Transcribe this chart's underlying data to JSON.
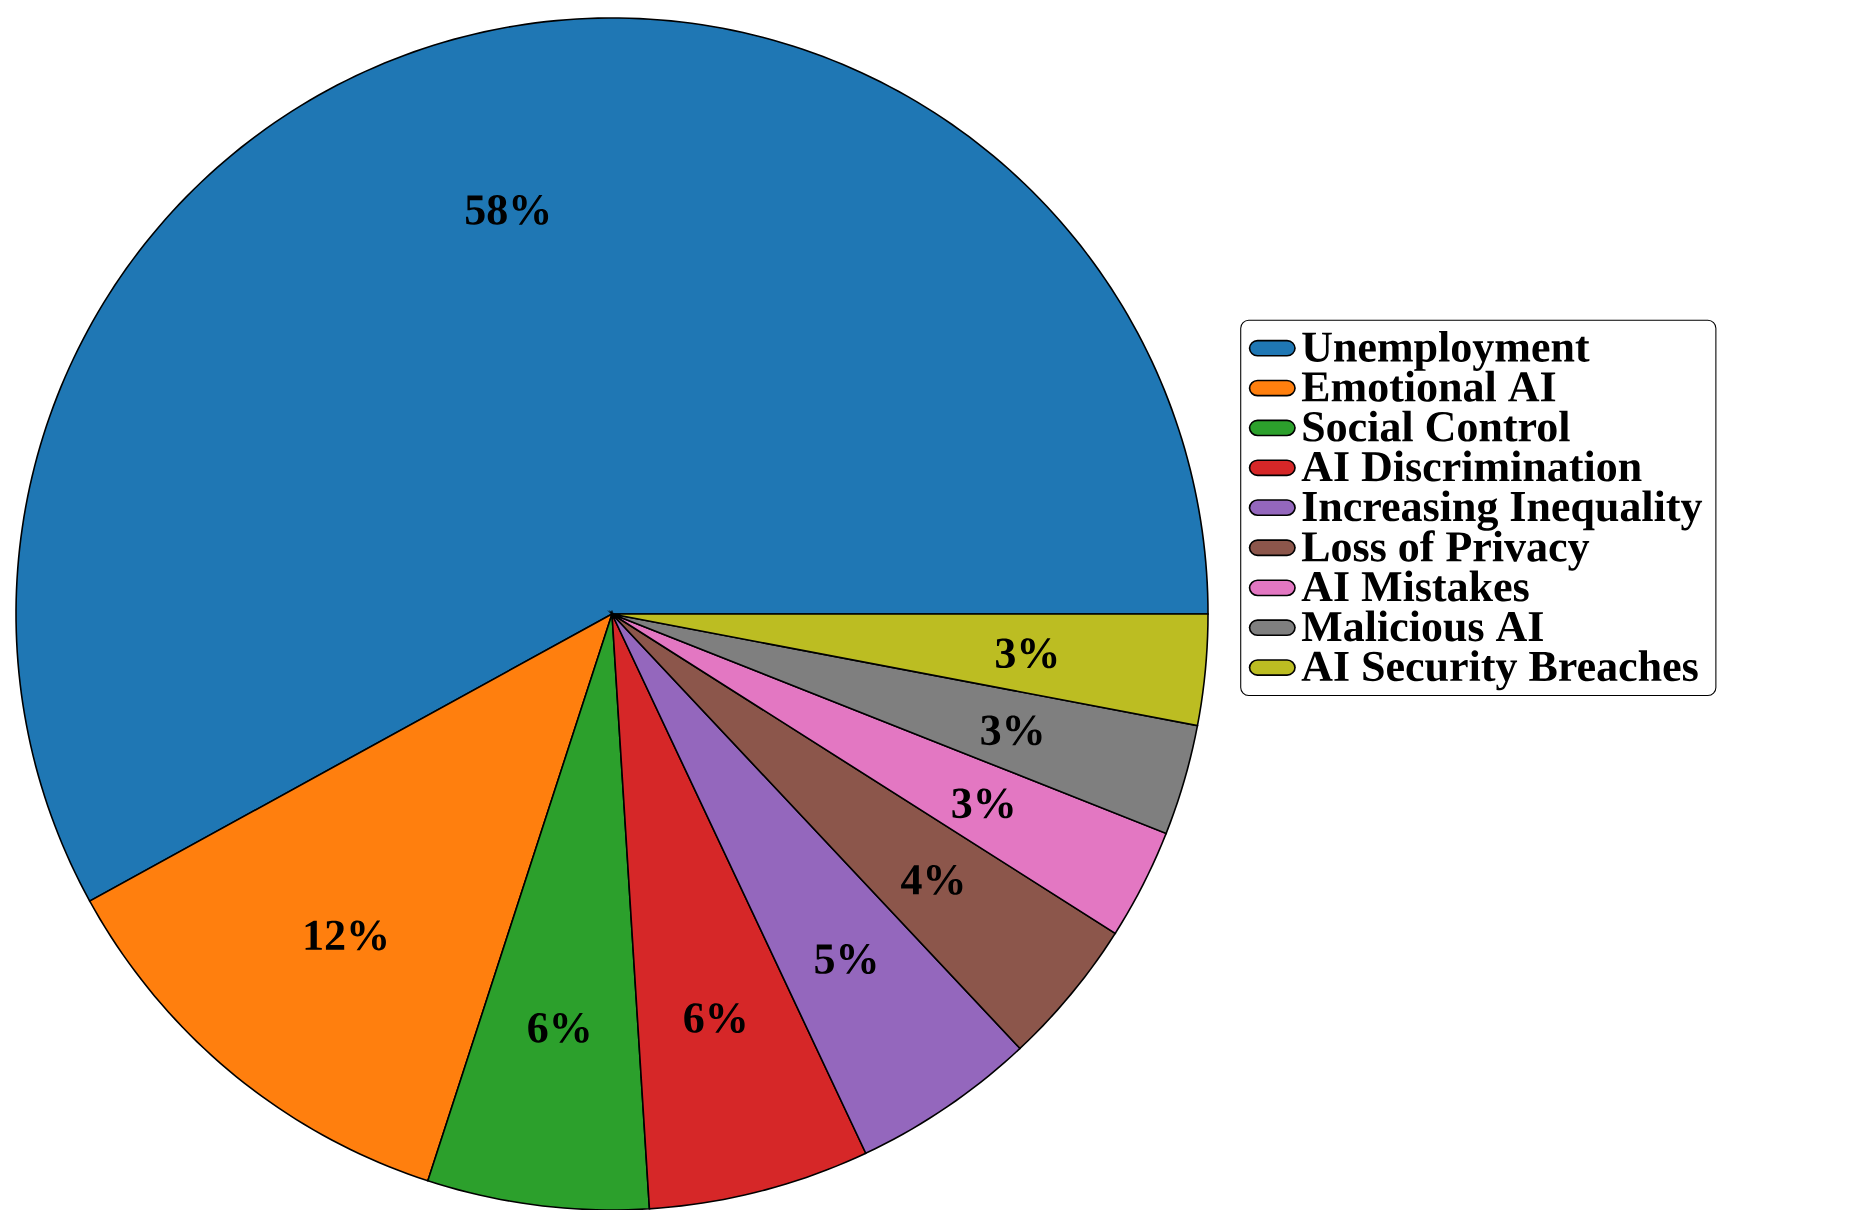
{
  "chart_data": {
    "type": "pie",
    "categories": [
      "Unemployment",
      "Emotional AI",
      "Social Control",
      "AI Discrimination",
      "Increasing Inequality",
      "Loss of Privacy",
      "AI Mistakes",
      "Malicious AI",
      "AI Security Breaches"
    ],
    "values": [
      58,
      12,
      6,
      6,
      5,
      4,
      3,
      3,
      3
    ],
    "value_labels": [
      "58%",
      "12%",
      "6%",
      "6%",
      "5%",
      "4%",
      "3%",
      "3%",
      "3%"
    ],
    "colors": [
      "#1f77b4",
      "#ff7f0e",
      "#2ca02c",
      "#d62728",
      "#9467bd",
      "#8c564b",
      "#e377c2",
      "#7f7f7f",
      "#bcbd22"
    ],
    "legend": "right"
  }
}
